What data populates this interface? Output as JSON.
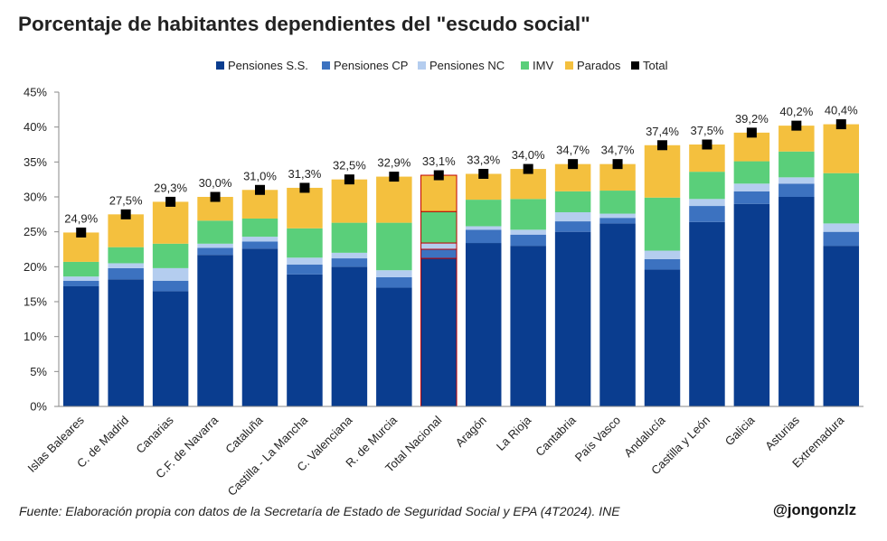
{
  "chart_data": {
    "type": "bar",
    "stacked": true,
    "title": "Porcentaje de habitantes dependientes del \"escudo social\"",
    "categories": [
      "Islas Baleares",
      "C. de Madrid",
      "Canarias",
      "C.F. de Navarra",
      "Cataluña",
      "Castilla - La Mancha",
      "C. Valenciana",
      "R. de Murcia",
      "Total Nacional",
      "Aragón",
      "La Rioja",
      "Cantabria",
      "País Vasco",
      "Andalucía",
      "Castilla y León",
      "Galicia",
      "Asturias",
      "Extremadura"
    ],
    "series": [
      {
        "name": "Pensiones S.S.",
        "color": "#0a3d8f",
        "values": [
          17.2,
          18.2,
          16.5,
          21.7,
          22.6,
          18.9,
          20.0,
          17.0,
          21.2,
          23.4,
          23.0,
          25.0,
          26.2,
          19.6,
          26.4,
          29.0,
          30.0,
          23.0
        ]
      },
      {
        "name": "Pensiones CP",
        "color": "#3c72c0",
        "values": [
          0.8,
          1.6,
          1.5,
          1.0,
          1.0,
          1.4,
          1.2,
          1.5,
          1.3,
          1.9,
          1.6,
          1.5,
          0.8,
          1.5,
          2.3,
          1.8,
          1.9,
          2.0
        ]
      },
      {
        "name": "Pensiones NC",
        "color": "#b4cdef",
        "values": [
          0.6,
          0.7,
          1.8,
          0.6,
          0.7,
          1.0,
          0.8,
          1.0,
          0.9,
          0.5,
          0.7,
          1.3,
          0.6,
          1.2,
          1.0,
          1.1,
          0.9,
          1.2
        ]
      },
      {
        "name": "IMV",
        "color": "#5acf7a",
        "values": [
          2.1,
          2.3,
          3.5,
          3.3,
          2.6,
          4.2,
          4.3,
          6.8,
          4.5,
          3.8,
          4.4,
          3.0,
          3.3,
          7.6,
          3.9,
          3.2,
          3.7,
          7.2
        ]
      },
      {
        "name": "Parados",
        "color": "#f4c03e",
        "values": [
          4.2,
          4.7,
          6.0,
          3.4,
          4.1,
          5.8,
          6.2,
          6.6,
          5.2,
          3.7,
          4.3,
          3.9,
          3.8,
          7.5,
          3.9,
          4.1,
          3.7,
          7.0
        ]
      }
    ],
    "totals": {
      "name": "Total",
      "color": "#000000",
      "values": [
        24.9,
        27.5,
        29.3,
        30.0,
        31.0,
        31.3,
        32.5,
        32.9,
        33.1,
        33.3,
        34.0,
        34.7,
        34.7,
        37.4,
        37.5,
        39.2,
        40.2,
        40.4
      ]
    },
    "total_labels": [
      "24,9%",
      "27,5%",
      "29,3%",
      "30,0%",
      "31,0%",
      "31,3%",
      "32,5%",
      "32,9%",
      "33,1%",
      "33,3%",
      "34,0%",
      "34,7%",
      "34,7%",
      "37,4%",
      "37,5%",
      "39,2%",
      "40,2%",
      "40,4%"
    ],
    "highlight_category": "Total Nacional",
    "highlight_color": "#c00000",
    "ylim": [
      0,
      45
    ],
    "yticks": [
      0,
      5,
      10,
      15,
      20,
      25,
      30,
      35,
      40,
      45
    ],
    "ytick_labels": [
      "0%",
      "5%",
      "10%",
      "15%",
      "20%",
      "25%",
      "30%",
      "35%",
      "40%",
      "45%"
    ],
    "xlabel": "",
    "ylabel": "",
    "grid": false,
    "legend_position": "top-center"
  },
  "footer": {
    "source": "Fuente: Elaboración propia con datos de la Secretaría de Estado de Seguridad Social y EPA (4T2024). INE",
    "handle": "@jongonzlz"
  }
}
